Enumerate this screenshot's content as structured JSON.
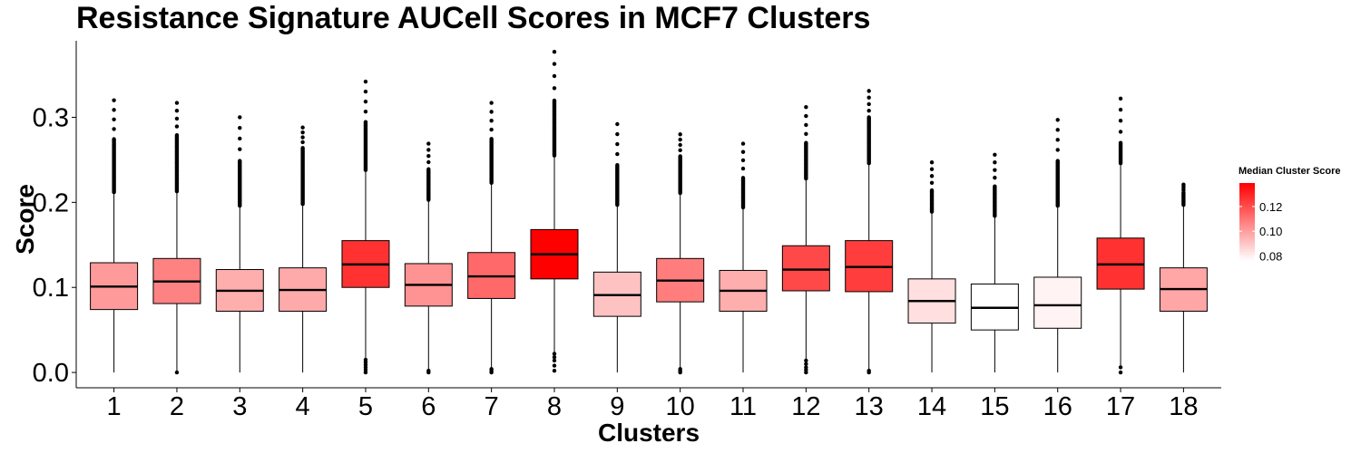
{
  "chart_data": {
    "type": "boxplot",
    "title": "Resistance Signature AUCell Scores in MCF7 Clusters",
    "xlabel": "Clusters",
    "ylabel": "Score",
    "ylim": [
      -0.018,
      0.39
    ],
    "y_ticks": [
      0.0,
      0.1,
      0.2,
      0.3
    ],
    "y_tick_labels": [
      "0.0",
      "0.1",
      "0.2",
      "0.3"
    ],
    "grid": false,
    "legend": {
      "title": "Median Cluster Score",
      "placement": "right",
      "range": [
        0.076,
        0.139
      ],
      "ticks": [
        0.08,
        0.1,
        0.12
      ],
      "tick_labels": [
        "0.08",
        "0.10",
        "0.12"
      ],
      "color_low": "#ffffff",
      "color_high": "#ff0000"
    },
    "categories": [
      "1",
      "2",
      "3",
      "4",
      "5",
      "6",
      "7",
      "8",
      "9",
      "10",
      "11",
      "12",
      "13",
      "14",
      "15",
      "16",
      "17",
      "18"
    ],
    "boxes": [
      {
        "q1": 0.074,
        "median": 0.101,
        "q3": 0.129,
        "whisker_low": 0.0,
        "whisker_high": 0.211,
        "upper_outlier_top": 0.32,
        "upper_outlier_start": 0.212,
        "upper_dense_top": 0.275,
        "low_outliers": []
      },
      {
        "q1": 0.081,
        "median": 0.107,
        "q3": 0.134,
        "whisker_low": 0.0,
        "whisker_high": 0.212,
        "upper_outlier_top": 0.317,
        "upper_outlier_start": 0.213,
        "upper_dense_top": 0.28,
        "low_outliers": [
          0.0
        ]
      },
      {
        "q1": 0.072,
        "median": 0.096,
        "q3": 0.121,
        "whisker_low": 0.0,
        "whisker_high": 0.195,
        "upper_outlier_top": 0.3,
        "upper_outlier_start": 0.196,
        "upper_dense_top": 0.25,
        "low_outliers": []
      },
      {
        "q1": 0.072,
        "median": 0.097,
        "q3": 0.123,
        "whisker_low": 0.0,
        "whisker_high": 0.197,
        "upper_outlier_top": 0.288,
        "upper_outlier_start": 0.198,
        "upper_dense_top": 0.265,
        "low_outliers": []
      },
      {
        "q1": 0.1,
        "median": 0.127,
        "q3": 0.155,
        "whisker_low": 0.017,
        "whisker_high": 0.237,
        "upper_outlier_top": 0.342,
        "upper_outlier_start": 0.238,
        "upper_dense_top": 0.295,
        "low_outliers": [
          0.0,
          0.003,
          0.006,
          0.009,
          0.012,
          0.015
        ]
      },
      {
        "q1": 0.078,
        "median": 0.103,
        "q3": 0.128,
        "whisker_low": 0.004,
        "whisker_high": 0.202,
        "upper_outlier_top": 0.269,
        "upper_outlier_start": 0.203,
        "upper_dense_top": 0.24,
        "low_outliers": [
          0.0,
          0.002
        ]
      },
      {
        "q1": 0.087,
        "median": 0.113,
        "q3": 0.141,
        "whisker_low": 0.005,
        "whisker_high": 0.222,
        "upper_outlier_top": 0.317,
        "upper_outlier_start": 0.223,
        "upper_dense_top": 0.275,
        "low_outliers": [
          0.0,
          0.002,
          0.004
        ]
      },
      {
        "q1": 0.11,
        "median": 0.139,
        "q3": 0.168,
        "whisker_low": 0.024,
        "whisker_high": 0.254,
        "upper_outlier_top": 0.377,
        "upper_outlier_start": 0.255,
        "upper_dense_top": 0.32,
        "low_outliers": [
          0.002,
          0.008,
          0.014,
          0.018,
          0.022
        ]
      },
      {
        "q1": 0.066,
        "median": 0.091,
        "q3": 0.118,
        "whisker_low": 0.0,
        "whisker_high": 0.196,
        "upper_outlier_top": 0.292,
        "upper_outlier_start": 0.197,
        "upper_dense_top": 0.245,
        "low_outliers": []
      },
      {
        "q1": 0.083,
        "median": 0.108,
        "q3": 0.134,
        "whisker_low": 0.005,
        "whisker_high": 0.21,
        "upper_outlier_top": 0.28,
        "upper_outlier_start": 0.211,
        "upper_dense_top": 0.255,
        "low_outliers": [
          0.0,
          0.002,
          0.004
        ]
      },
      {
        "q1": 0.072,
        "median": 0.096,
        "q3": 0.12,
        "whisker_low": 0.0,
        "whisker_high": 0.193,
        "upper_outlier_top": 0.269,
        "upper_outlier_start": 0.194,
        "upper_dense_top": 0.23,
        "low_outliers": []
      },
      {
        "q1": 0.096,
        "median": 0.121,
        "q3": 0.149,
        "whisker_low": 0.016,
        "whisker_high": 0.227,
        "upper_outlier_top": 0.312,
        "upper_outlier_start": 0.228,
        "upper_dense_top": 0.27,
        "low_outliers": [
          0.0,
          0.003,
          0.006,
          0.01,
          0.014
        ]
      },
      {
        "q1": 0.095,
        "median": 0.124,
        "q3": 0.155,
        "whisker_low": 0.004,
        "whisker_high": 0.245,
        "upper_outlier_top": 0.331,
        "upper_outlier_start": 0.246,
        "upper_dense_top": 0.3,
        "low_outliers": [
          0.0,
          0.002
        ]
      },
      {
        "q1": 0.058,
        "median": 0.084,
        "q3": 0.11,
        "whisker_low": 0.0,
        "whisker_high": 0.188,
        "upper_outlier_top": 0.247,
        "upper_outlier_start": 0.189,
        "upper_dense_top": 0.215,
        "low_outliers": []
      },
      {
        "q1": 0.05,
        "median": 0.076,
        "q3": 0.104,
        "whisker_low": 0.0,
        "whisker_high": 0.183,
        "upper_outlier_top": 0.256,
        "upper_outlier_start": 0.184,
        "upper_dense_top": 0.22,
        "low_outliers": []
      },
      {
        "q1": 0.052,
        "median": 0.079,
        "q3": 0.112,
        "whisker_low": 0.0,
        "whisker_high": 0.195,
        "upper_outlier_top": 0.297,
        "upper_outlier_start": 0.196,
        "upper_dense_top": 0.25,
        "low_outliers": []
      },
      {
        "q1": 0.098,
        "median": 0.127,
        "q3": 0.158,
        "whisker_low": 0.008,
        "whisker_high": 0.245,
        "upper_outlier_top": 0.322,
        "upper_outlier_start": 0.246,
        "upper_dense_top": 0.27,
        "low_outliers": [
          0.0,
          0.006
        ]
      },
      {
        "q1": 0.072,
        "median": 0.098,
        "q3": 0.123,
        "whisker_low": 0.0,
        "whisker_high": 0.196,
        "upper_outlier_top": 0.221,
        "upper_outlier_start": 0.197,
        "upper_dense_top": 0.212,
        "low_outliers": []
      }
    ]
  }
}
